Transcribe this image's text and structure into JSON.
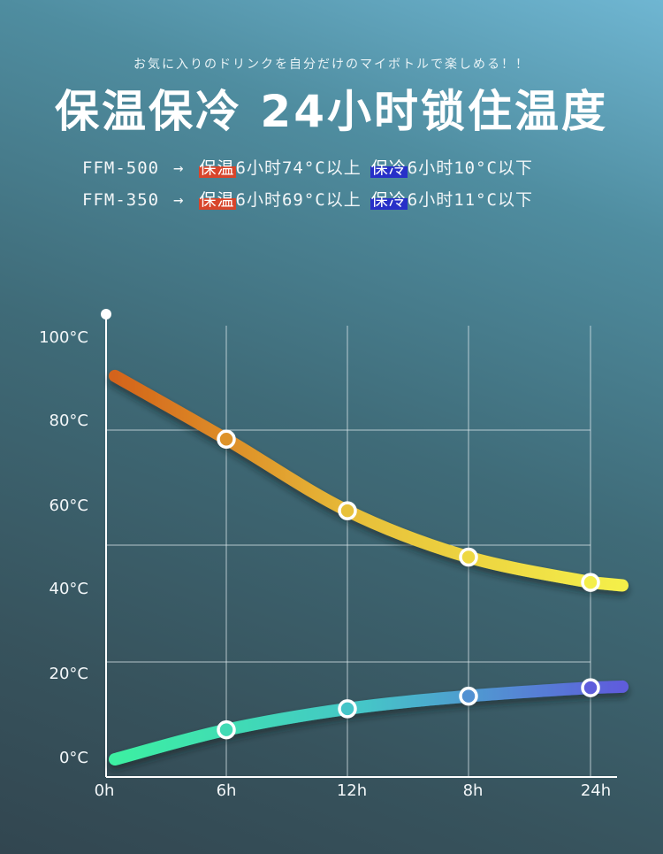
{
  "header": {
    "tagline": "お気に入りのドリンクを自分だけのマイボトルで楽しめる！！",
    "headline": "保温保冷 24小时锁住温度"
  },
  "specs": [
    {
      "model": "FFM-500",
      "arrow": "→",
      "hot_tag": "保温",
      "hot_text": "6小时74°C以上",
      "cold_tag": "保冷",
      "cold_text": "6小时10°C以下"
    },
    {
      "model": "FFM-350",
      "arrow": "→",
      "hot_tag": "保温",
      "hot_text": "6小时69°C以上",
      "cold_tag": "保冷",
      "cold_text": "6小时11°C以下"
    }
  ],
  "chart_data": {
    "type": "line",
    "title": "",
    "xlabel": "",
    "ylabel": "",
    "categories": [
      "0h",
      "6h",
      "12h",
      "8h",
      "24h"
    ],
    "y_ticks": [
      "0°C",
      "20°C",
      "40°C",
      "60°C",
      "80°C",
      "100°C"
    ],
    "ylim": [
      0,
      100
    ],
    "grid": true,
    "series": [
      {
        "values": [
          91,
          76,
          59,
          48,
          42
        ],
        "markers": [
          false,
          true,
          true,
          true,
          true
        ],
        "colors": [
          "#d4641a",
          "#e8c13a",
          "#f4ef4a"
        ]
      },
      {
        "values": [
          0,
          7,
          12,
          15,
          17
        ],
        "markers": [
          false,
          true,
          true,
          true,
          true
        ],
        "colors": [
          "#3cf0a2",
          "#45c5c8",
          "#5e5ddc"
        ]
      }
    ]
  }
}
